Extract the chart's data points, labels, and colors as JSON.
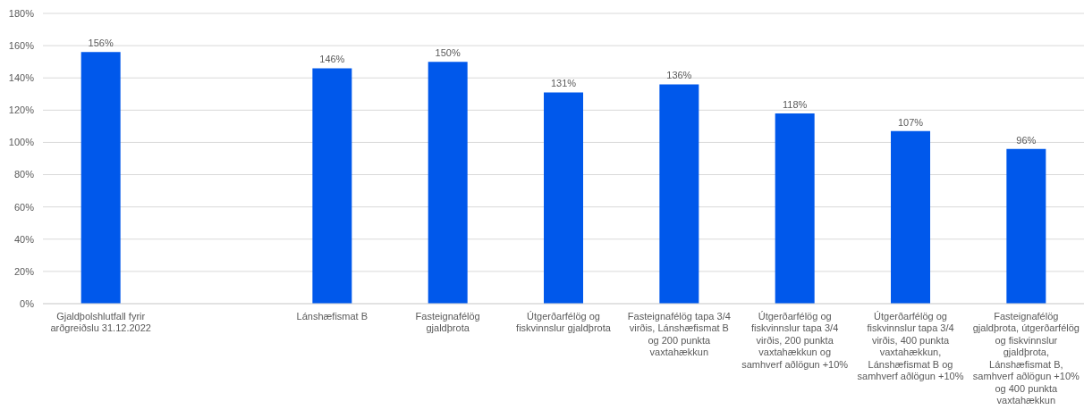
{
  "chart_data": {
    "type": "bar",
    "categories": [
      "Gjaldþolshlutfall fyrir arðgreiðslu 31.12.2022",
      null,
      "Lánshæfismat B",
      "Fasteignafélög gjaldþrota",
      "Útgerðarfélög og fiskvinnslur gjaldþrota",
      "Fasteignafélög tapa 3/4 virðis, Lánshæfismat B og 200 punkta vaxtahækkun",
      "Útgerðarfélög og fiskvinnslur tapa 3/4 virðis, 200 punkta vaxtahækkun og samhverf aðlögun +10%",
      "Útgerðarfélög og fiskvinnslur tapa 3/4 virðis, 400 punkta vaxtahækkun, Lánshæfismat B og samhverf aðlögun +10%",
      "Fasteignafélög gjaldþrota, útgerðarfélög og fiskvinnslur gjaldþrota, Lánshæfismat B, samhverf aðlögun +10% og 400 punkta vaxtahækkun"
    ],
    "values": [
      156,
      null,
      146,
      150,
      131,
      136,
      118,
      107,
      96
    ],
    "value_labels": [
      "156%",
      null,
      "146%",
      "150%",
      "131%",
      "136%",
      "118%",
      "107%",
      "96%"
    ],
    "color": "#0058eb",
    "ylim": [
      0,
      180
    ],
    "yticks": [
      {
        "value": 0,
        "label": "0%"
      },
      {
        "value": 20,
        "label": "20%"
      },
      {
        "value": 40,
        "label": "40%"
      },
      {
        "value": 60,
        "label": "60%"
      },
      {
        "value": 80,
        "label": "80%"
      },
      {
        "value": 100,
        "label": "100%"
      },
      {
        "value": 120,
        "label": "120%"
      },
      {
        "value": 140,
        "label": "140%"
      },
      {
        "value": 160,
        "label": "160%"
      },
      {
        "value": 180,
        "label": "180%"
      }
    ],
    "grid": "y"
  }
}
